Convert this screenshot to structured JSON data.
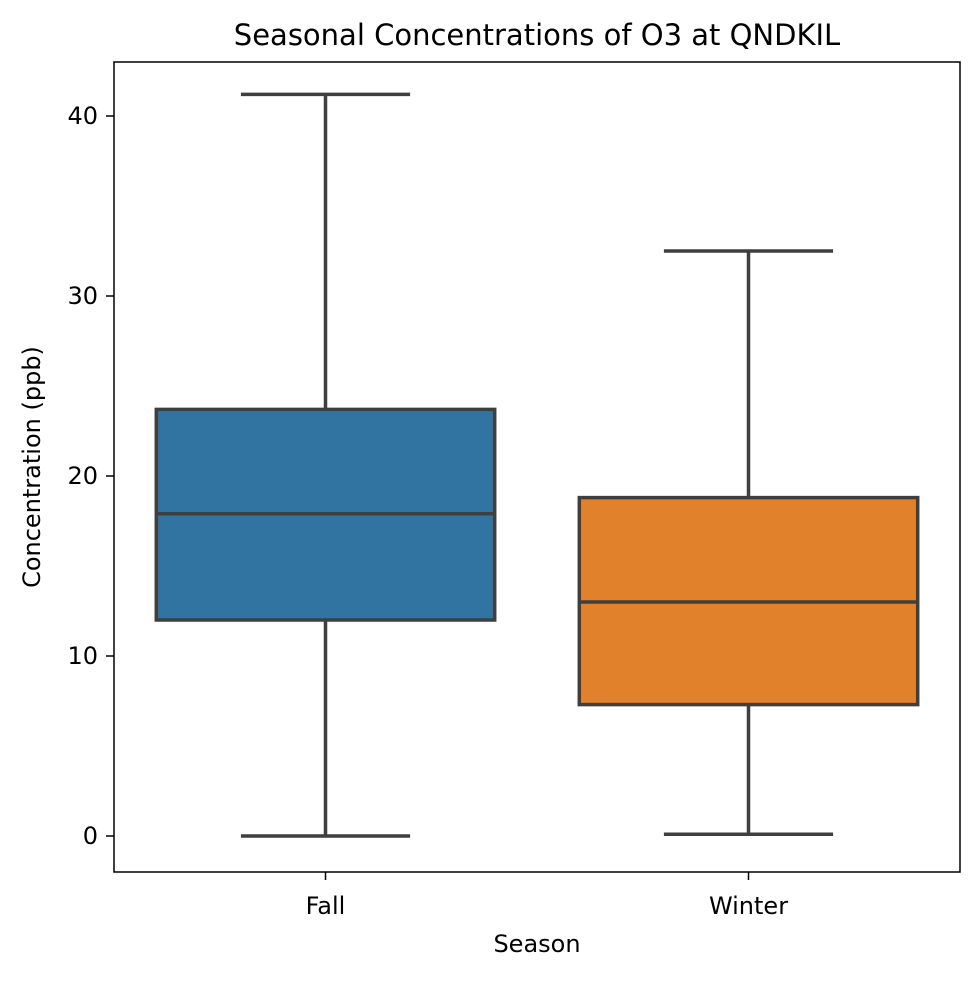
{
  "chart_data": {
    "type": "box",
    "title": "Seasonal Concentrations of O3 at QNDKIL",
    "xlabel": "Season",
    "ylabel": "Concentration (ppb)",
    "ylim": [
      -2,
      43
    ],
    "yticks": [
      0,
      10,
      20,
      30,
      40
    ],
    "categories": [
      "Fall",
      "Winter"
    ],
    "boxes": [
      {
        "category": "Fall",
        "whisker_low": 0.0,
        "q1": 12.0,
        "median": 17.9,
        "q3": 23.7,
        "whisker_high": 41.2,
        "color": "#3274a1"
      },
      {
        "category": "Winter",
        "whisker_low": 0.1,
        "q1": 7.3,
        "median": 13.0,
        "q3": 18.8,
        "whisker_high": 32.5,
        "color": "#e1812c"
      }
    ],
    "line_color": "#3f3f3f",
    "grid": false,
    "legend": "none"
  }
}
